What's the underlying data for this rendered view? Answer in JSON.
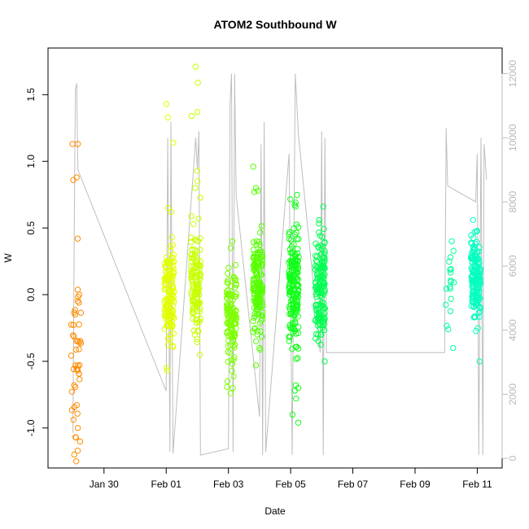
{
  "chart_data": {
    "type": "scatter",
    "title": "ATOM2 Southbound W",
    "xlabel": "Date",
    "ylabel": "W",
    "x_ticks": [
      "Jan 30",
      "Feb 01",
      "Feb 03",
      "Feb 05",
      "Feb 07",
      "Feb 09",
      "Feb 11"
    ],
    "x_tick_days": [
      30,
      32,
      34,
      36,
      38,
      40,
      42
    ],
    "xlim_days": [
      28.2,
      42.8
    ],
    "y_ticks": [
      -1.0,
      -0.5,
      0.0,
      0.5,
      1.0,
      1.5
    ],
    "ylim": [
      -1.3,
      1.85
    ],
    "y2_ticks": [
      0,
      2000,
      4000,
      6000,
      8000,
      10000,
      12000
    ],
    "y2lim": [
      -300,
      12800
    ],
    "right_axis_color": "#bebebe",
    "line_color": "#bebebe",
    "grid": false,
    "bursts": [
      {
        "x": 29.1,
        "color": "#ff8c00",
        "n": 44,
        "mean": -0.45,
        "sd": 0.35,
        "outliers": [
          1.13,
          1.13,
          0.88,
          0.86,
          0.42,
          -1.07,
          -1.2,
          -1.0
        ]
      },
      {
        "x": 32.1,
        "color": "#e0ff00",
        "n": 140,
        "mean": -0.02,
        "sd": 0.18,
        "outliers": [
          1.43,
          1.33,
          1.14,
          0.65,
          0.62,
          -0.55,
          -0.57
        ]
      },
      {
        "x": 32.95,
        "color": "#c8ff00",
        "n": 130,
        "mean": 0.08,
        "sd": 0.17,
        "outliers": [
          1.71,
          1.59,
          1.37,
          1.34,
          0.93,
          0.85,
          0.8,
          -0.3,
          -0.45
        ]
      },
      {
        "x": 34.1,
        "color": "#7cff00",
        "n": 120,
        "mean": -0.15,
        "sd": 0.16,
        "outliers": [
          0.4,
          0.35,
          -0.65,
          -0.7,
          -0.74,
          -0.52
        ]
      },
      {
        "x": 34.95,
        "color": "#55ff00",
        "n": 150,
        "mean": 0.05,
        "sd": 0.22,
        "outliers": [
          0.96,
          0.8,
          0.78,
          -0.53,
          -0.35
        ]
      },
      {
        "x": 36.1,
        "color": "#10ff18",
        "n": 170,
        "mean": 0.05,
        "sd": 0.25,
        "outliers": [
          0.69,
          0.66,
          -0.72,
          -0.7,
          -0.78,
          -0.9,
          -0.96,
          -0.68
        ]
      },
      {
        "x": 36.95,
        "color": "#00ff50",
        "n": 150,
        "mean": 0.05,
        "sd": 0.2,
        "outliers": [
          0.66,
          -0.3,
          -0.5,
          -0.3
        ]
      },
      {
        "x": 41.1,
        "color": "#00ff9c",
        "n": 16,
        "mean": 0.1,
        "sd": 0.18,
        "outliers": [
          0.4,
          -0.26,
          -0.4
        ]
      },
      {
        "x": 41.95,
        "color": "#00ffc0",
        "n": 150,
        "mean": 0.12,
        "sd": 0.15,
        "outliers": [
          0.56,
          -0.5
        ]
      }
    ],
    "pressure_line": [
      [
        29.0,
        800
      ],
      [
        29.05,
        8000
      ],
      [
        29.08,
        11500
      ],
      [
        29.12,
        11700
      ],
      [
        29.16,
        9000
      ],
      [
        32.0,
        2100
      ],
      [
        32.05,
        10000
      ],
      [
        32.12,
        200
      ],
      [
        32.15,
        10500
      ],
      [
        32.22,
        150
      ],
      [
        32.95,
        10000
      ],
      [
        33.0,
        9000
      ],
      [
        33.05,
        10200
      ],
      [
        33.1,
        100
      ],
      [
        34.0,
        300
      ],
      [
        34.05,
        11000
      ],
      [
        34.1,
        12000
      ],
      [
        34.15,
        200
      ],
      [
        34.2,
        12000
      ],
      [
        34.25,
        8200
      ],
      [
        35.0,
        1300
      ],
      [
        35.05,
        9800
      ],
      [
        35.1,
        100
      ],
      [
        35.15,
        10500
      ],
      [
        35.2,
        200
      ],
      [
        35.95,
        9500
      ],
      [
        36.05,
        100
      ],
      [
        36.15,
        12000
      ],
      [
        36.25,
        10100
      ],
      [
        36.95,
        3300
      ],
      [
        37.0,
        10200
      ],
      [
        37.05,
        100
      ],
      [
        37.1,
        10000
      ],
      [
        37.15,
        3300
      ],
      [
        40.95,
        3300
      ],
      [
        41.0,
        10300
      ],
      [
        41.05,
        8500
      ],
      [
        41.95,
        8000
      ],
      [
        42.0,
        9500
      ],
      [
        42.05,
        100
      ],
      [
        42.12,
        10000
      ],
      [
        42.18,
        100
      ],
      [
        42.22,
        9800
      ],
      [
        42.3,
        8700
      ]
    ]
  }
}
